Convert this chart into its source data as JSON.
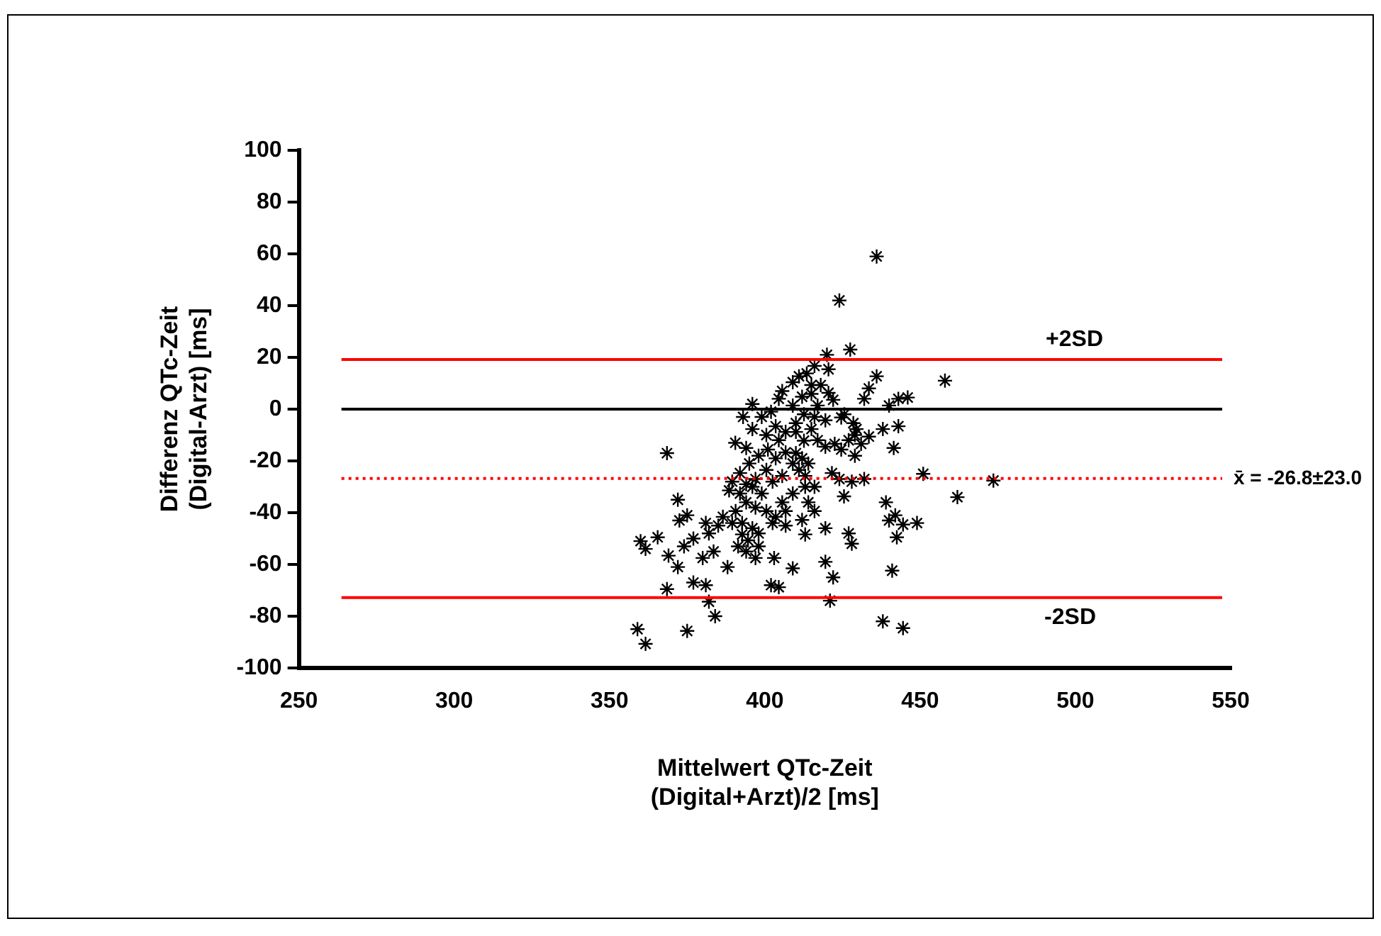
{
  "chart_data": {
    "type": "scatter",
    "xlabel": "Mittelwert QTc-Zeit\n(Digital+Arzt)/2 [ms]",
    "ylabel": "Differenz QTc-Zeit\n(Digital-Arzt) [ms]",
    "xlim": [
      250,
      550
    ],
    "xticks": [
      250,
      300,
      350,
      400,
      450,
      500,
      550
    ],
    "ylim": [
      -100,
      100
    ],
    "yticks": [
      -100,
      -80,
      -60,
      -40,
      -20,
      0,
      20,
      40,
      60,
      80,
      100
    ],
    "grid": false,
    "legend": false,
    "marker": "cross",
    "series": [
      {
        "color": "#000000",
        "x": [
          436,
          424,
          427.5,
          420,
          436,
          458,
          433.5,
          432,
          443,
          446,
          440,
          396,
          443,
          438,
          433.5,
          441.5,
          429.5,
          429,
          451,
          473.6,
          462,
          439,
          440,
          442,
          444.5,
          449,
          442.5,
          427,
          428,
          441,
          419.5,
          422,
          421,
          438,
          444.5,
          409,
          403,
          397,
          402,
          404.5,
          388,
          384,
          382,
          381,
          377,
          375,
          368.5,
          372,
          369,
          361.6,
          360,
          365.5,
          359,
          361.6,
          368.5,
          372,
          372.5,
          375,
          374,
          377,
          381,
          380,
          382,
          385,
          386.5,
          383.5,
          393,
          390.5,
          394,
          396,
          399,
          402,
          404.5,
          405.6,
          409,
          411,
          413.5,
          416,
          420.5,
          420.5,
          422,
          415,
          412.6,
          416,
          419.5,
          410,
          406.7,
          404.5,
          401,
          398,
          395,
          392,
          389.5,
          388.5,
          392,
          394,
          397,
          400.5,
          403.5,
          406.7,
          410,
          412,
          411,
          414,
          417,
          419.5,
          422.5,
          424.6,
          427,
          428.5,
          421.6,
          424,
          428,
          432,
          425.5,
          413,
          416,
          409,
          405.6,
          406.7,
          403.5,
          400.5,
          397,
          394,
          390.6,
          392.7,
          396,
          398,
          394.6,
          391.4,
          392.7,
          389.5,
          412,
          413,
          416,
          419.5,
          414,
          413,
          409,
          405.6,
          402.5,
          399,
          396,
          400.5,
          403.5,
          409,
          410,
          412.6,
          415,
          417,
          418,
          415,
          412,
          425.6,
          429,
          431,
          424.6,
          402.5,
          406.7,
          398,
          394
        ],
        "values": [
          59,
          42,
          23,
          21,
          12.7,
          11,
          8,
          4,
          4,
          4.5,
          1.4,
          2,
          -6.6,
          -7.7,
          -10.6,
          -15,
          -7.7,
          -18,
          -25,
          -27.6,
          -34,
          -36,
          -43,
          -41,
          -44.6,
          -44,
          -49.5,
          -48,
          -52,
          -62.4,
          -59,
          -65,
          -74,
          -82,
          -84.6,
          -61.5,
          -57.5,
          -57.5,
          -68,
          -68.8,
          -61,
          -80,
          -74.4,
          -68,
          -67,
          -85.7,
          -69.5,
          -61,
          -56.6,
          -54,
          -51,
          -49.5,
          -85,
          -90.7,
          -17,
          -35,
          -43,
          -41,
          -53,
          -50,
          -44,
          -57.5,
          -48,
          -45,
          -41.6,
          -55,
          -3,
          -13,
          -15,
          -7.7,
          -3,
          -1,
          4,
          7,
          10.4,
          12.7,
          13.8,
          16.7,
          15.4,
          6.3,
          3.6,
          5.9,
          -2,
          -3,
          -4.3,
          -5.4,
          -8.8,
          -12,
          -15.6,
          -18,
          -21,
          -24.7,
          -28,
          -31.4,
          -32.6,
          -29,
          -27,
          -23.5,
          -19,
          -16.7,
          -17,
          -19,
          -23.5,
          -21,
          -12,
          -14.5,
          -13.4,
          -15.6,
          -12,
          -5.4,
          -24.7,
          -27,
          -28,
          -27,
          -33.7,
          -30,
          -30,
          -32.6,
          -36,
          -39.4,
          -41.6,
          -39.4,
          -38,
          -36,
          -39.4,
          -44,
          -46,
          -48,
          -50.7,
          -53,
          -48.4,
          -44,
          -42.8,
          -48.4,
          -39.4,
          -46,
          -36,
          -25.8,
          -21,
          -25.8,
          -28,
          -32.6,
          -30,
          -10,
          -6.6,
          1.4,
          -8.8,
          -12.2,
          -7.7,
          1.4,
          9.3,
          9.3,
          4.8,
          -2,
          -10,
          -13.4,
          -3.2,
          -44,
          -45,
          -53,
          -55
        ]
      }
    ],
    "ref_lines": [
      {
        "axis": "y",
        "value": 19.2,
        "label": "+2SD",
        "color": "#ff0000",
        "line_style": "solid"
      },
      {
        "axis": "y",
        "value": 0,
        "label": null,
        "color": "#000000",
        "line_style": "solid"
      },
      {
        "axis": "y",
        "value": -26.8,
        "label": "x̄ = -26.8±23.0",
        "color": "#ff0000",
        "line_style": "dotted"
      },
      {
        "axis": "y",
        "value": -72.8,
        "label": "-2SD",
        "color": "#ff0000",
        "line_style": "solid"
      }
    ]
  }
}
